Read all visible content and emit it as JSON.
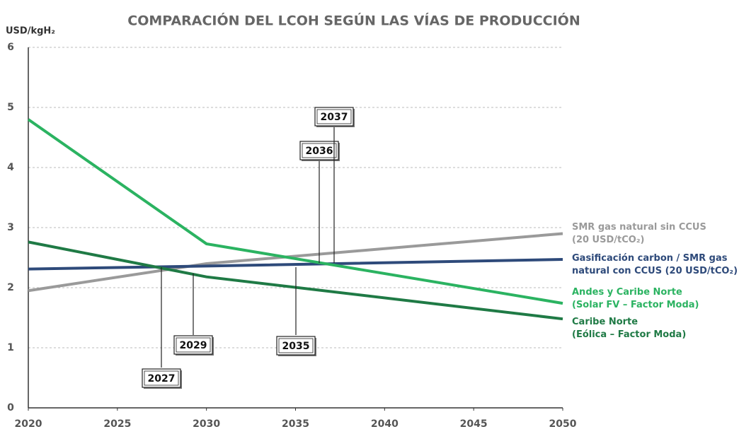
{
  "chart_data": {
    "type": "line",
    "title": "COMPARACIÓN DEL LCOH SEGÚN LAS VÍAS DE PRODUCCIÓN",
    "y_label": "USD/kgH₂",
    "x": [
      2020,
      2030,
      2050
    ],
    "series": [
      {
        "name": "SMR gas natural sin CCUS\n(20 USD/tCO₂)",
        "color": "#9a9a9a",
        "values": [
          1.95,
          2.4,
          2.9
        ]
      },
      {
        "name": "Gasificación carbon / SMR gas\nnatural con CCUS (20 USD/tCO₂)",
        "color": "#2e4a7a",
        "values": [
          2.31,
          2.36,
          2.47
        ]
      },
      {
        "name": "Andes y Caribe Norte\n(Solar FV – Factor Moda)",
        "color": "#2bb361",
        "values": [
          4.8,
          2.73,
          1.74
        ]
      },
      {
        "name": "Caribe Norte\n(Eólica – Factor Moda)",
        "color": "#1f7a45",
        "values": [
          2.76,
          2.18,
          1.48
        ]
      }
    ],
    "xlim": [
      2020,
      2050
    ],
    "xticks": [
      2020,
      2025,
      2030,
      2035,
      2040,
      2045,
      2050
    ],
    "ylim": [
      0,
      6
    ],
    "yticks": [
      0,
      1,
      2,
      3,
      4,
      5,
      6
    ],
    "grid": true,
    "annotations": [
      "2027",
      "2029",
      "2035",
      "2036",
      "2037"
    ]
  }
}
